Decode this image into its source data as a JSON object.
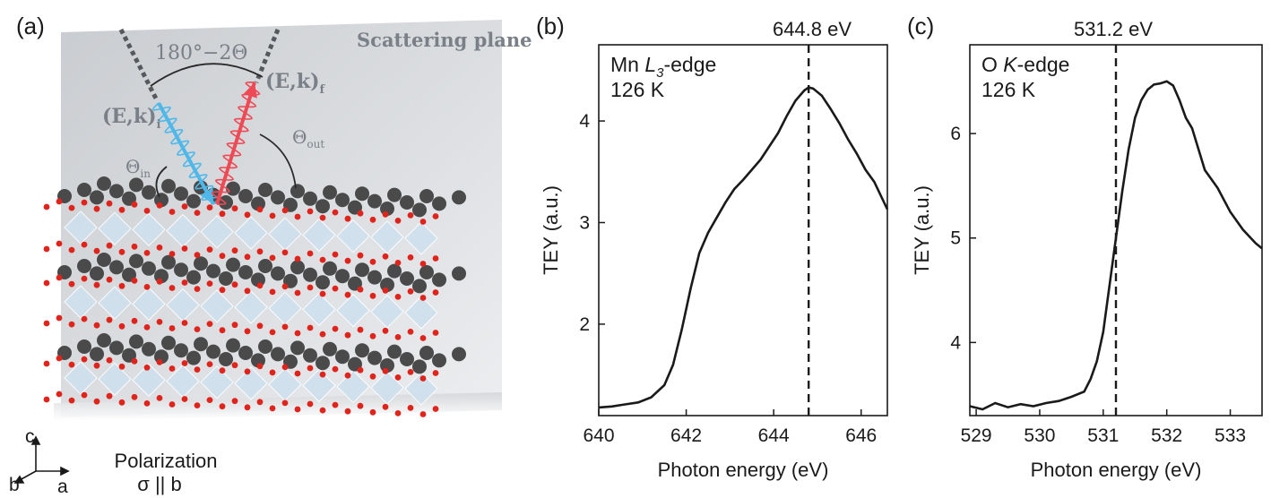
{
  "panel_a": {
    "label": "(a)",
    "plane_label": "Scattering plane",
    "angle_label": "180°−2Θ",
    "k_in": "(E,k)",
    "k_in_sub": "i",
    "k_out": "(E,k)",
    "k_out_sub": "f",
    "theta_in": "Θ",
    "theta_in_sub": "in",
    "theta_out": "Θ",
    "theta_out_sub": "out",
    "axis_c": "c",
    "axis_b": "b",
    "axis_a": "a",
    "polarization_title": "Polarization",
    "polarization_value": "σ || b",
    "colors": {
      "plane": "#d9dcdf",
      "incoming": "#4fb8e8",
      "outgoing": "#ee4a55",
      "atom_dark": "#4a4a4a",
      "atom_red": "#e0241c",
      "octahedron": "#cfe0ee"
    }
  },
  "chart_data": [
    {
      "type": "line",
      "panel_label": "(b)",
      "title_prefix": "Mn ",
      "title_italic": "L",
      "title_sub": "3",
      "title_suffix": "-edge",
      "temperature": "126 K",
      "xlabel": "Photon energy (eV)",
      "ylabel": "TEY (a.u.)",
      "xlim": [
        640,
        646.6
      ],
      "ylim": [
        1.1,
        4.75
      ],
      "xticks": [
        640,
        642,
        644,
        646
      ],
      "yticks": [
        2,
        3,
        4
      ],
      "marker_x": 644.8,
      "marker_label": "644.8 eV",
      "x": [
        640.0,
        640.3,
        640.6,
        640.9,
        641.2,
        641.5,
        641.7,
        641.9,
        642.1,
        642.3,
        642.5,
        642.7,
        642.9,
        643.1,
        643.3,
        643.5,
        643.7,
        643.9,
        644.1,
        644.3,
        644.5,
        644.7,
        644.8,
        644.9,
        645.1,
        645.3,
        645.5,
        645.7,
        645.9,
        646.1,
        646.3,
        646.5,
        646.6
      ],
      "y": [
        1.18,
        1.19,
        1.21,
        1.23,
        1.28,
        1.4,
        1.6,
        1.95,
        2.35,
        2.7,
        2.9,
        3.05,
        3.2,
        3.33,
        3.42,
        3.52,
        3.62,
        3.75,
        3.88,
        4.05,
        4.2,
        4.3,
        4.33,
        4.32,
        4.25,
        4.12,
        3.98,
        3.82,
        3.68,
        3.52,
        3.4,
        3.22,
        3.13
      ]
    },
    {
      "type": "line",
      "panel_label": "(c)",
      "title_prefix": "O ",
      "title_italic": "K",
      "title_sub": "",
      "title_suffix": "-edge",
      "temperature": "126 K",
      "xlabel": "Photon energy (eV)",
      "ylabel": "TEY (a.u.)",
      "xlim": [
        528.9,
        533.5
      ],
      "ylim": [
        3.3,
        6.85
      ],
      "xticks": [
        529,
        530,
        531,
        532,
        533
      ],
      "yticks": [
        4,
        5,
        6
      ],
      "marker_x": 531.2,
      "marker_label": "531.2 eV",
      "x": [
        528.9,
        529.1,
        529.3,
        529.5,
        529.7,
        529.9,
        530.1,
        530.3,
        530.5,
        530.7,
        530.8,
        530.9,
        531.0,
        531.1,
        531.2,
        531.3,
        531.4,
        531.5,
        531.6,
        531.7,
        531.8,
        531.9,
        532.0,
        532.1,
        532.2,
        532.3,
        532.4,
        532.5,
        532.6,
        532.8,
        533.0,
        533.2,
        533.4,
        533.5
      ],
      "y": [
        3.39,
        3.36,
        3.42,
        3.38,
        3.41,
        3.39,
        3.42,
        3.44,
        3.48,
        3.53,
        3.65,
        3.82,
        4.1,
        4.55,
        5.0,
        5.45,
        5.85,
        6.15,
        6.32,
        6.42,
        6.47,
        6.48,
        6.5,
        6.46,
        6.32,
        6.15,
        6.05,
        5.85,
        5.65,
        5.48,
        5.25,
        5.08,
        4.95,
        4.9
      ]
    }
  ]
}
